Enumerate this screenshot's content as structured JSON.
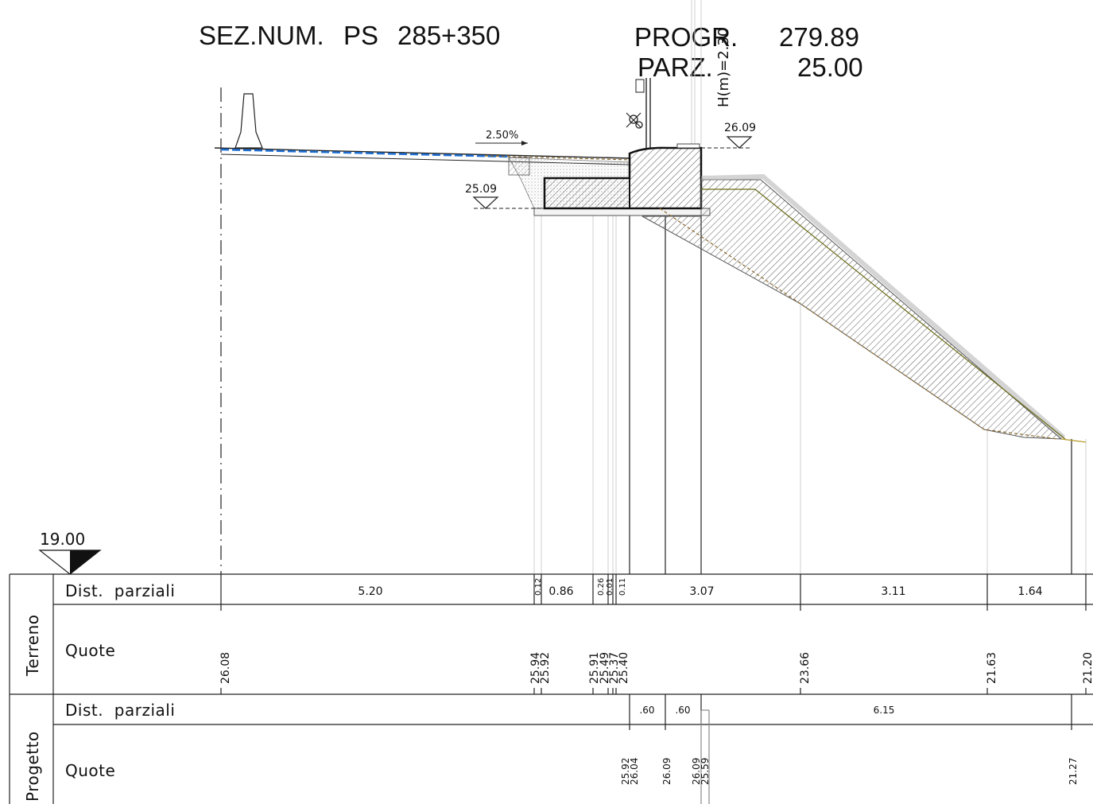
{
  "header": {
    "section_label": "SEZ.NUM.",
    "section_code": "PS",
    "section_value": "285+350",
    "progr_label": "PROGR.",
    "progr_value": "279.89",
    "parz_label": "PARZ.",
    "parz_value": "25.00",
    "height_label": "H(m)=2.30"
  },
  "drawing": {
    "datum": "19.00",
    "slope": "2.50%",
    "level_top": "26.09",
    "level_bottom": "25.09",
    "colors": {
      "ink": "#111111",
      "guide": "#c8c8c8",
      "water": "#1f6fd1",
      "fill": "#8a6a2f"
    }
  },
  "table": {
    "terreno": {
      "group_label": "Terreno",
      "dist_label": "Dist.  parziali",
      "quote_label": "Quote",
      "dist_values": [
        "5.20",
        "0.12",
        "0.86",
        "0.26",
        "0.01",
        "0.11",
        "3.07",
        "3.11",
        "1.64"
      ],
      "quote_values": [
        "26.08",
        "25.94",
        "25.92",
        "25.91",
        "25.49",
        "25.37",
        "25.40",
        "23.66",
        "21.63",
        "21.20"
      ]
    },
    "progetto": {
      "group_label": "Progetto",
      "dist_label": "Dist.  parziali",
      "quote_label": "Quote",
      "dist_values": [
        ".60",
        ".60",
        "6.15"
      ],
      "quote_values": [
        "25.92",
        "26.04",
        "26.09",
        "26.09",
        "25.59",
        "21.27"
      ]
    }
  }
}
